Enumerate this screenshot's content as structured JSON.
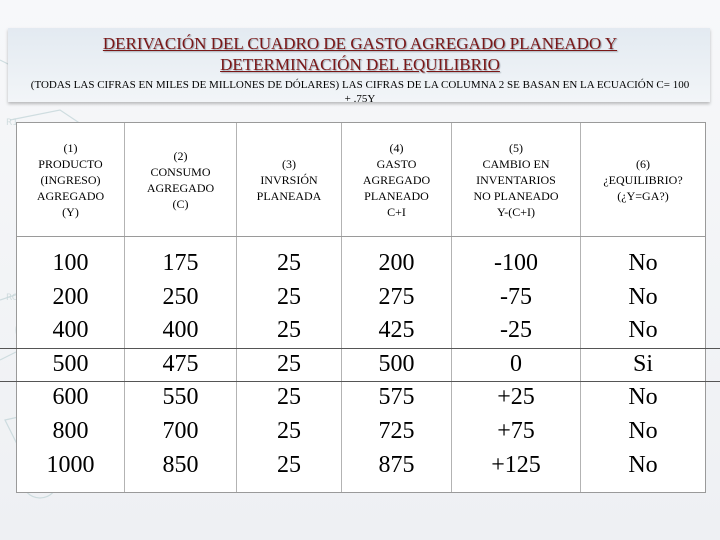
{
  "title": {
    "line1": "DERIVACIÓN DEL CUADRO DE GASTO AGREGADO PLANEADO Y",
    "line2": "DETERMINACIÓN DEL EQUILIBRIO",
    "subtitle": "(TODAS LAS CIFRAS EN MILES DE MILLONES DE DÓLARES) LAS CIFRAS DE LA COLUMNA 2 SE BASAN EN LA ECUACIÓN C= 100 + .75Y"
  },
  "columns": [
    {
      "header": "(1)\nPRODUCTO\n(INGRESO)\nAGREGADO\n(Y)",
      "values": [
        "100",
        "200",
        "400",
        "500",
        "600",
        "800",
        "1000"
      ]
    },
    {
      "header": "(2)\nCONSUMO\nAGREGADO\n(C)",
      "values": [
        "175",
        "250",
        "400",
        "475",
        "550",
        "700",
        "850"
      ]
    },
    {
      "header": "(3)\nINVRSIÓN\nPLANEADA",
      "values": [
        "25",
        "25",
        "25",
        "25",
        "25",
        "25",
        "25"
      ]
    },
    {
      "header": "(4)\nGASTO\nAGREGADO\nPLANEADO\nC+I",
      "values": [
        "200",
        "275",
        "425",
        "500",
        "575",
        "725",
        "875"
      ]
    },
    {
      "header": "(5)\nCAMBIO EN\nINVENTARIOS\nNO PLANEADO\nY-(C+I)",
      "values": [
        "-100",
        "-75",
        "-25",
        "0",
        "+25",
        "+75",
        "+125"
      ]
    },
    {
      "header": "(6)\n¿EQUILIBRIO?\n(¿Y=GA?)",
      "values": [
        "No",
        "No",
        "No",
        "Si",
        "No",
        "No",
        "No"
      ]
    }
  ]
}
